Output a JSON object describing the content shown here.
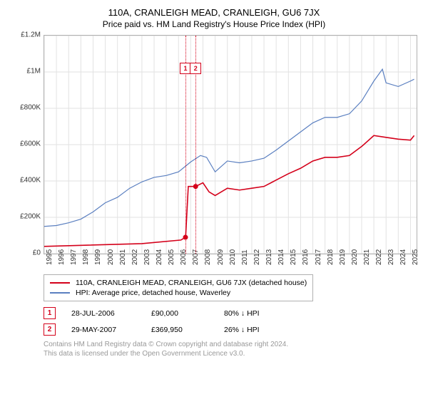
{
  "title": "110A, CRANLEIGH MEAD, CRANLEIGH, GU6 7JX",
  "subtitle": "Price paid vs. HM Land Registry's House Price Index (HPI)",
  "chart": {
    "type": "line",
    "background": "#ffffff",
    "border_color": "#b0b0b0",
    "grid_color": "#e2e2e2",
    "xlim": [
      1995,
      2025.5
    ],
    "ylim": [
      0,
      1200000
    ],
    "ytick_step": 200000,
    "yticks": [
      "£0",
      "£200K",
      "£400K",
      "£600K",
      "£800K",
      "£1M",
      "£1.2M"
    ],
    "xticks": [
      "1995",
      "1996",
      "1997",
      "1998",
      "1999",
      "2000",
      "2001",
      "2002",
      "2003",
      "2004",
      "2005",
      "2006",
      "2007",
      "2008",
      "2009",
      "2010",
      "2011",
      "2012",
      "2013",
      "2014",
      "2015",
      "2016",
      "2017",
      "2018",
      "2019",
      "2020",
      "2021",
      "2022",
      "2023",
      "2024",
      "2025"
    ],
    "series": [
      {
        "key": "red",
        "label": "110A, CRANLEIGH MEAD, CRANLEIGH, GU6 7JX (detached house)",
        "color": "#d4001a",
        "line_width": 1.6,
        "data": [
          [
            1995,
            40000
          ],
          [
            2003,
            55000
          ],
          [
            2006.2,
            75000
          ],
          [
            2006.55,
            90000
          ],
          [
            2006.58,
            90000
          ],
          [
            2006.8,
            370000
          ],
          [
            2007.4,
            369950
          ],
          [
            2008,
            390000
          ],
          [
            2008.5,
            340000
          ],
          [
            2009,
            320000
          ],
          [
            2010,
            360000
          ],
          [
            2011,
            350000
          ],
          [
            2012,
            360000
          ],
          [
            2013,
            370000
          ],
          [
            2014,
            405000
          ],
          [
            2015,
            440000
          ],
          [
            2016,
            470000
          ],
          [
            2017,
            510000
          ],
          [
            2018,
            530000
          ],
          [
            2019,
            530000
          ],
          [
            2020,
            540000
          ],
          [
            2021,
            590000
          ],
          [
            2022,
            650000
          ],
          [
            2023,
            640000
          ],
          [
            2024,
            630000
          ],
          [
            2025,
            625000
          ],
          [
            2025.3,
            650000
          ]
        ],
        "sale_dots": [
          {
            "x": 2006.57,
            "y": 90000
          },
          {
            "x": 2007.4,
            "y": 369950
          }
        ]
      },
      {
        "key": "blue",
        "label": "HPI: Average price, detached house, Waverley",
        "color": "#5a7fc0",
        "line_width": 1.2,
        "data": [
          [
            1995,
            150000
          ],
          [
            1996,
            155000
          ],
          [
            1997,
            170000
          ],
          [
            1998,
            190000
          ],
          [
            1999,
            230000
          ],
          [
            2000,
            280000
          ],
          [
            2001,
            310000
          ],
          [
            2002,
            360000
          ],
          [
            2003,
            395000
          ],
          [
            2004,
            420000
          ],
          [
            2005,
            430000
          ],
          [
            2006,
            450000
          ],
          [
            2007,
            505000
          ],
          [
            2007.8,
            540000
          ],
          [
            2008.3,
            530000
          ],
          [
            2009,
            450000
          ],
          [
            2010,
            510000
          ],
          [
            2011,
            500000
          ],
          [
            2012,
            510000
          ],
          [
            2013,
            525000
          ],
          [
            2014,
            570000
          ],
          [
            2015,
            620000
          ],
          [
            2016,
            670000
          ],
          [
            2017,
            720000
          ],
          [
            2018,
            750000
          ],
          [
            2019,
            750000
          ],
          [
            2020,
            770000
          ],
          [
            2021,
            840000
          ],
          [
            2022,
            950000
          ],
          [
            2022.7,
            1015000
          ],
          [
            2023,
            940000
          ],
          [
            2024,
            920000
          ],
          [
            2025,
            950000
          ],
          [
            2025.3,
            960000
          ]
        ]
      }
    ],
    "event_lines": [
      {
        "x": 2006.57,
        "color": "#d4001a",
        "label": "1"
      },
      {
        "x": 2007.4,
        "color": "#d4001a",
        "label": "2"
      }
    ]
  },
  "markers": [
    {
      "num": "1",
      "date": "28-JUL-2006",
      "price": "£90,000",
      "delta": "80% ↓ HPI",
      "color": "#d4001a"
    },
    {
      "num": "2",
      "date": "29-MAY-2007",
      "price": "£369,950",
      "delta": "26% ↓ HPI",
      "color": "#d4001a"
    }
  ],
  "attribution": {
    "line1": "Contains HM Land Registry data © Crown copyright and database right 2024.",
    "line2": "This data is licensed under the Open Government Licence v3.0."
  }
}
